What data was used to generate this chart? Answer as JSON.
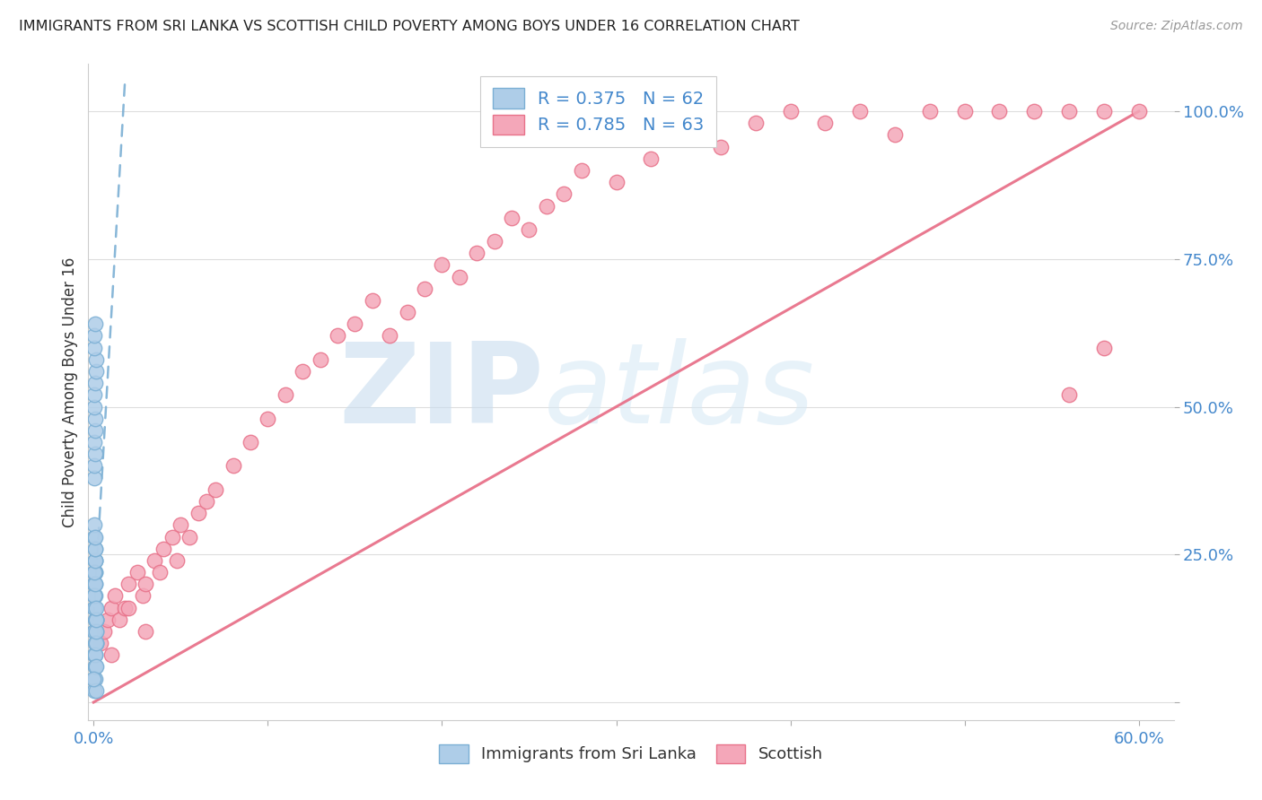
{
  "title": "IMMIGRANTS FROM SRI LANKA VS SCOTTISH CHILD POVERTY AMONG BOYS UNDER 16 CORRELATION CHART",
  "source": "Source: ZipAtlas.com",
  "ylabel": "Child Poverty Among Boys Under 16",
  "legend1_label": "R = 0.375   N = 62",
  "legend2_label": "R = 0.785   N = 63",
  "legend_bottom_label1": "Immigrants from Sri Lanka",
  "legend_bottom_label2": "Scottish",
  "color_blue": "#7BAFD4",
  "color_blue_fill": "#AECDE8",
  "color_blue_trend": "#7BAFD4",
  "color_pink_fill": "#F4A7B9",
  "color_pink_edge": "#E8728A",
  "color_pink_trend": "#E8728A",
  "watermark_color": "#D8EAF7",
  "xlim": [
    -0.003,
    0.62
  ],
  "ylim": [
    -0.03,
    1.08
  ],
  "yticks": [
    0.0,
    0.25,
    0.5,
    0.75,
    1.0
  ],
  "ytick_labels": [
    "",
    "25.0%",
    "50.0%",
    "75.0%",
    "100.0%"
  ],
  "xtick_labels_show": [
    "0.0%",
    "60.0%"
  ],
  "sl_x": [
    0.0003,
    0.0005,
    0.0007,
    0.001,
    0.0012,
    0.0015,
    0.0008,
    0.0004,
    0.0006,
    0.0009,
    0.0011,
    0.0014,
    0.0002,
    0.0007,
    0.001,
    0.0013,
    0.0016,
    0.0005,
    0.0008,
    0.001,
    0.0003,
    0.0006,
    0.0009,
    0.0012,
    0.0004,
    0.0007,
    0.0011,
    0.0014,
    0.0002,
    0.0005,
    0.0008,
    0.001,
    0.0013,
    0.0003,
    0.0006,
    0.0009,
    0.0012,
    0.0015,
    0.0004,
    0.0007,
    0.001,
    0.0002,
    0.0005,
    0.0008,
    0.0011,
    0.0014,
    0.0003,
    0.0006,
    0.0009,
    0.0013,
    0.0004,
    0.0007,
    0.0011,
    0.0002,
    0.0005,
    0.0008,
    0.0012,
    0.0015,
    0.0003,
    0.0006,
    0.0009,
    0.0001
  ],
  "sl_y": [
    0.02,
    0.04,
    0.06,
    0.08,
    0.1,
    0.12,
    0.14,
    0.16,
    0.18,
    0.2,
    0.22,
    0.1,
    0.08,
    0.06,
    0.04,
    0.02,
    0.14,
    0.12,
    0.16,
    0.18,
    0.2,
    0.22,
    0.24,
    0.14,
    0.12,
    0.1,
    0.08,
    0.06,
    0.18,
    0.2,
    0.22,
    0.24,
    0.14,
    0.16,
    0.18,
    0.2,
    0.1,
    0.12,
    0.22,
    0.24,
    0.26,
    0.28,
    0.3,
    0.26,
    0.28,
    0.14,
    0.38,
    0.4,
    0.42,
    0.16,
    0.44,
    0.46,
    0.48,
    0.5,
    0.52,
    0.54,
    0.56,
    0.58,
    0.6,
    0.62,
    0.64,
    0.04
  ],
  "sc_x": [
    0.004,
    0.006,
    0.008,
    0.01,
    0.012,
    0.015,
    0.018,
    0.02,
    0.025,
    0.028,
    0.03,
    0.035,
    0.038,
    0.04,
    0.045,
    0.048,
    0.05,
    0.055,
    0.06,
    0.065,
    0.07,
    0.08,
    0.09,
    0.1,
    0.11,
    0.12,
    0.13,
    0.14,
    0.15,
    0.16,
    0.17,
    0.18,
    0.19,
    0.2,
    0.21,
    0.22,
    0.23,
    0.24,
    0.25,
    0.26,
    0.27,
    0.28,
    0.3,
    0.32,
    0.34,
    0.36,
    0.38,
    0.4,
    0.42,
    0.44,
    0.46,
    0.48,
    0.5,
    0.52,
    0.54,
    0.56,
    0.58,
    0.6,
    0.58,
    0.56,
    0.01,
    0.02,
    0.03
  ],
  "sc_y": [
    0.1,
    0.12,
    0.14,
    0.16,
    0.18,
    0.14,
    0.16,
    0.2,
    0.22,
    0.18,
    0.2,
    0.24,
    0.22,
    0.26,
    0.28,
    0.24,
    0.3,
    0.28,
    0.32,
    0.34,
    0.36,
    0.4,
    0.44,
    0.48,
    0.52,
    0.56,
    0.58,
    0.62,
    0.64,
    0.68,
    0.62,
    0.66,
    0.7,
    0.74,
    0.72,
    0.76,
    0.78,
    0.82,
    0.8,
    0.84,
    0.86,
    0.9,
    0.88,
    0.92,
    0.96,
    0.94,
    0.98,
    1.0,
    0.98,
    1.0,
    0.96,
    1.0,
    1.0,
    1.0,
    1.0,
    1.0,
    1.0,
    1.0,
    0.6,
    0.52,
    0.08,
    0.16,
    0.12
  ],
  "sl_trend_x": [
    0.0,
    0.018
  ],
  "sl_trend_y": [
    0.14,
    1.05
  ],
  "sc_trend_x": [
    0.0,
    0.6
  ],
  "sc_trend_y": [
    0.0,
    1.0
  ]
}
